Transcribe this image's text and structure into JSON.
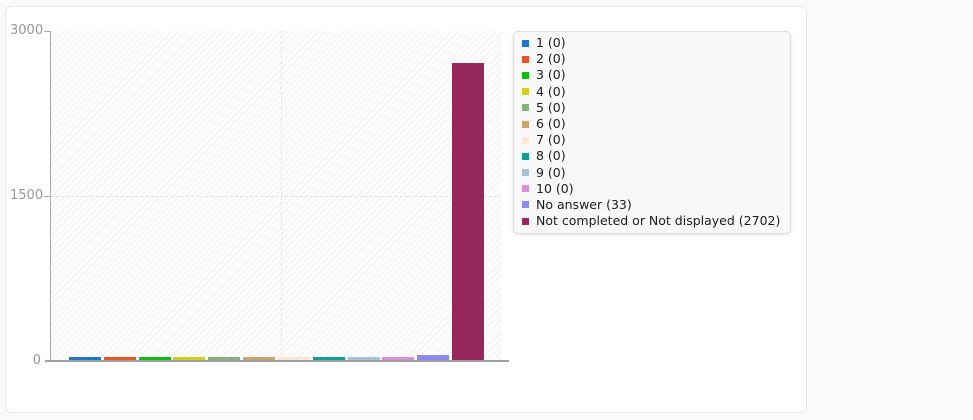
{
  "chart_data": {
    "type": "bar",
    "title": "",
    "xlabel": "",
    "ylabel": "",
    "ylim": [
      0,
      3000
    ],
    "yticks": [
      0,
      1500,
      3000
    ],
    "grid": "dashed horizontal gridline at 1500, dashed vertical gridline at plot center, hatched plot background",
    "legend_position": "right",
    "categories": [
      "1",
      "2",
      "3",
      "4",
      "5",
      "6",
      "7",
      "8",
      "9",
      "10",
      "No answer",
      "Not completed or Not displayed"
    ],
    "values": [
      0,
      0,
      0,
      0,
      0,
      0,
      0,
      0,
      0,
      0,
      33,
      2702
    ],
    "colors": [
      "#1d77c4",
      "#e8552b",
      "#12bd12",
      "#d3ce22",
      "#8ab07d",
      "#cba46c",
      "#fbe6da",
      "#0d9e94",
      "#a9c2d8",
      "#d791d9",
      "#8d87ee",
      "#97285e"
    ],
    "legend_entries": [
      "1 (0)",
      "2 (0)",
      "3 (0)",
      "4 (0)",
      "5 (0)",
      "6 (0)",
      "7 (0)",
      "8 (0)",
      "9 (0)",
      "10 (0)",
      "No answer (33)",
      "Not completed or Not displayed (2702)"
    ]
  }
}
